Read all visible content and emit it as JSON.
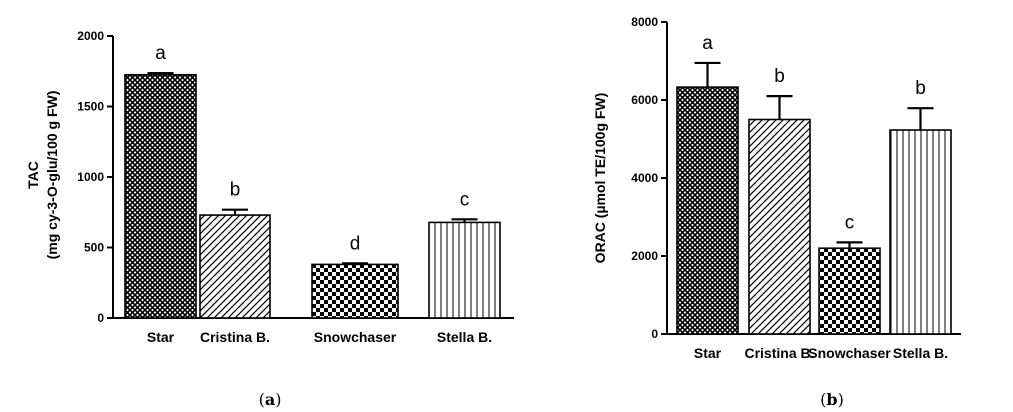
{
  "chart_data": [
    {
      "type": "bar",
      "panel_label_open": "(",
      "panel_label_letter": "a",
      "panel_label_close": ")",
      "ylabel_line1": "TAC",
      "ylabel_line2": "(mg cy-3-O-glu/100 g FW)",
      "ylim": [
        0,
        2000
      ],
      "yticks": [
        0,
        500,
        1000,
        1500,
        2000
      ],
      "categories": [
        "Star",
        "Cristina B.",
        "Snowchaser",
        "Stella B."
      ],
      "values": [
        1725,
        730,
        380,
        678
      ],
      "errors": [
        12,
        38,
        8,
        22
      ],
      "letters": [
        "a",
        "b",
        "d",
        "c"
      ],
      "patterns": [
        "crosshatch",
        "diagonal",
        "checker",
        "vertical"
      ]
    },
    {
      "type": "bar",
      "panel_label_open": "(",
      "panel_label_letter": "b",
      "panel_label_close": ")",
      "ylabel": "ORAC (µmol TE/100g FW)",
      "ylim": [
        0,
        8000
      ],
      "yticks": [
        0,
        2000,
        4000,
        6000,
        8000
      ],
      "categories": [
        "Star",
        "Cristina B.",
        "Snowchaser",
        "Stella B."
      ],
      "values": [
        6330,
        5500,
        2200,
        5230
      ],
      "errors": [
        620,
        600,
        150,
        560
      ],
      "letters": [
        "a",
        "b",
        "c",
        "b"
      ],
      "patterns": [
        "crosshatch",
        "diagonal",
        "checker",
        "vertical"
      ]
    }
  ]
}
